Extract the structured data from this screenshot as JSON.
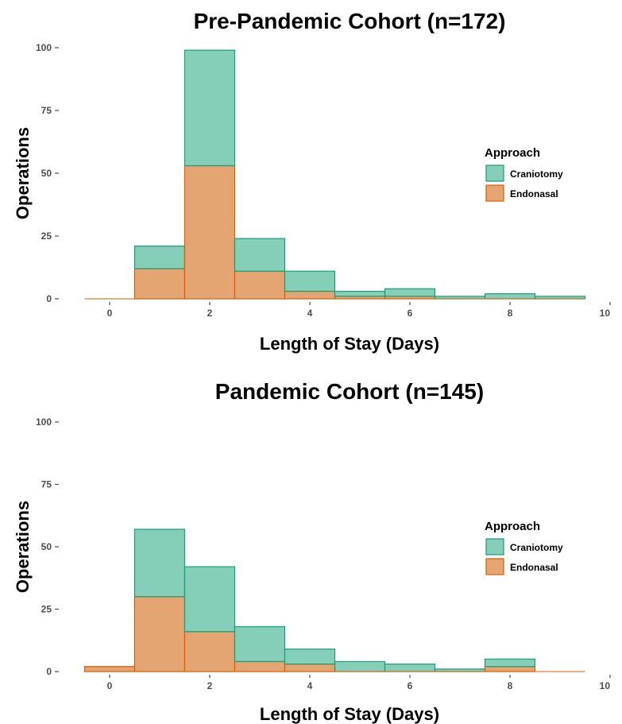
{
  "chart_data": [
    {
      "type": "bar",
      "title": "Pre-Pandemic Cohort (n=172)",
      "xlabel": "Length of Stay (Days)",
      "ylabel": "Operations",
      "xlim": [
        -0.5,
        10
      ],
      "ylim": [
        0,
        100
      ],
      "x_ticks": [
        0,
        2,
        4,
        6,
        8,
        10
      ],
      "y_ticks": [
        0,
        25,
        50,
        75,
        100
      ],
      "grid": false,
      "stacked": true,
      "legend": {
        "title": "Approach",
        "position": "right"
      },
      "categories": [
        0,
        1,
        2,
        3,
        4,
        5,
        6,
        7,
        8,
        9
      ],
      "series": [
        {
          "name": "Craniotomy",
          "color": "#66c2a5",
          "values": [
            0,
            9,
            46,
            13,
            8,
            2,
            3,
            1,
            2,
            1
          ]
        },
        {
          "name": "Endonasal",
          "color": "#e0955b",
          "values": [
            0,
            12,
            53,
            11,
            3,
            1,
            1,
            0,
            0,
            0
          ]
        }
      ]
    },
    {
      "type": "bar",
      "title": "Pandemic Cohort (n=145)",
      "xlabel": "Length of Stay (Days)",
      "ylabel": "Operations",
      "xlim": [
        -0.5,
        10
      ],
      "ylim": [
        0,
        100
      ],
      "x_ticks": [
        0,
        2,
        4,
        6,
        8,
        10
      ],
      "y_ticks": [
        0,
        25,
        50,
        75,
        100
      ],
      "grid": false,
      "stacked": true,
      "legend": {
        "title": "Approach",
        "position": "right"
      },
      "categories": [
        0,
        1,
        2,
        3,
        4,
        5,
        6,
        7,
        8,
        9
      ],
      "series": [
        {
          "name": "Craniotomy",
          "color": "#66c2a5",
          "values": [
            0,
            27,
            26,
            14,
            6,
            4,
            3,
            1,
            3,
            0
          ]
        },
        {
          "name": "Endonasal",
          "color": "#e0955b",
          "values": [
            2,
            30,
            16,
            4,
            3,
            0,
            0,
            0,
            2,
            0
          ]
        }
      ]
    }
  ]
}
